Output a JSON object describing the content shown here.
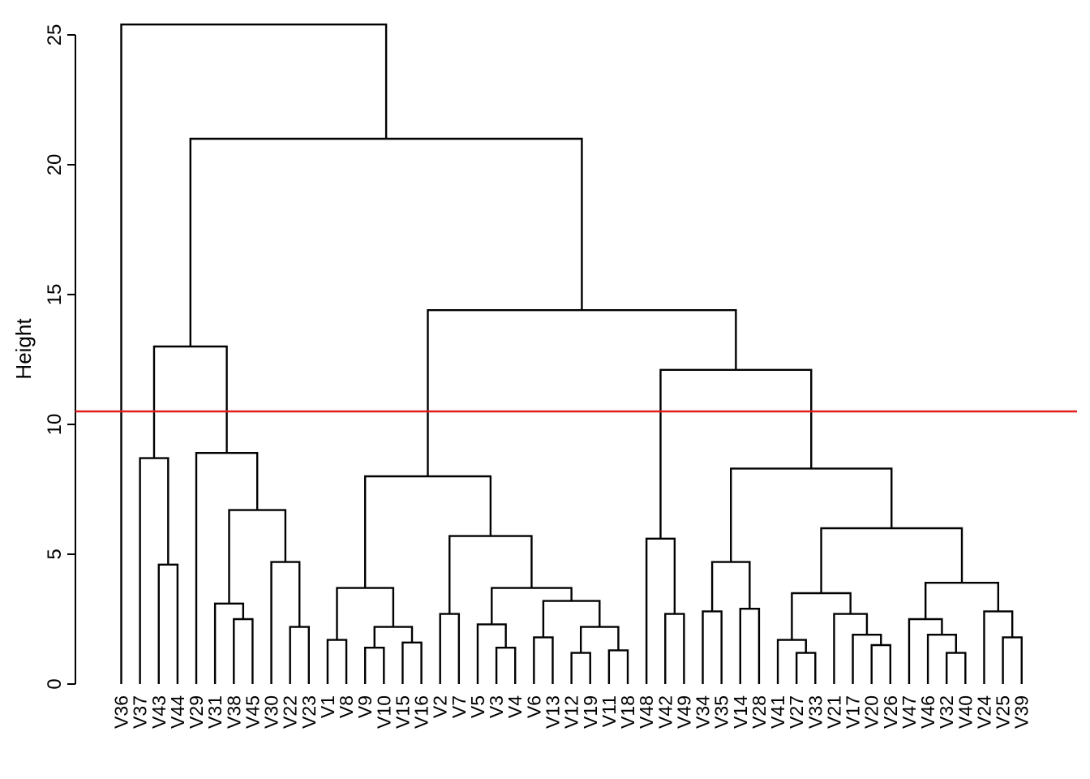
{
  "chart_data": {
    "type": "dendrogram",
    "title": "",
    "xlabel": "",
    "ylabel": "Height",
    "ylim": [
      0,
      25.5
    ],
    "yticks": [
      0,
      5,
      10,
      15,
      20,
      25
    ],
    "leaves": [
      "V36",
      "V37",
      "V43",
      "V44",
      "V29",
      "V31",
      "V38",
      "V45",
      "V30",
      "V22",
      "V23",
      "V1",
      "V8",
      "V9",
      "V10",
      "V15",
      "V16",
      "V2",
      "V7",
      "V5",
      "V3",
      "V4",
      "V6",
      "V13",
      "V12",
      "V19",
      "V11",
      "V18",
      "V48",
      "V42",
      "V49",
      "V34",
      "V35",
      "V14",
      "V28",
      "V41",
      "V27",
      "V33",
      "V21",
      "V17",
      "V20",
      "V26",
      "V47",
      "V46",
      "V32",
      "V40",
      "V24",
      "V25",
      "V39"
    ],
    "merges": [
      [
        "V43",
        "V44",
        4.6,
        "A1"
      ],
      [
        "V37",
        "A1",
        8.7,
        "A2"
      ],
      [
        "V38",
        "V45",
        2.5,
        "B1"
      ],
      [
        "V31",
        "B1",
        3.1,
        "B2"
      ],
      [
        "V22",
        "V23",
        2.2,
        "B3"
      ],
      [
        "V30",
        "B3",
        4.7,
        "B4"
      ],
      [
        "B2",
        "B4",
        6.7,
        "B5"
      ],
      [
        "V29",
        "B5",
        8.9,
        "B6"
      ],
      [
        "A2",
        "B6",
        13.0,
        "AB"
      ],
      [
        "V1",
        "V8",
        1.7,
        "C1"
      ],
      [
        "V9",
        "V10",
        1.4,
        "C2"
      ],
      [
        "V15",
        "V16",
        1.6,
        "C3"
      ],
      [
        "C2",
        "C3",
        2.2,
        "C4"
      ],
      [
        "C1",
        "C4",
        3.7,
        "C5"
      ],
      [
        "V2",
        "V7",
        2.7,
        "C6"
      ],
      [
        "V3",
        "V4",
        1.4,
        "C7"
      ],
      [
        "V5",
        "C7",
        2.3,
        "C8"
      ],
      [
        "V6",
        "V13",
        1.8,
        "C9"
      ],
      [
        "V12",
        "V19",
        1.2,
        "C10"
      ],
      [
        "V11",
        "V18",
        1.3,
        "C11"
      ],
      [
        "C10",
        "C11",
        2.2,
        "C12"
      ],
      [
        "C9",
        "C12",
        3.2,
        "C13"
      ],
      [
        "C8",
        "C13",
        3.7,
        "C14"
      ],
      [
        "C6",
        "C14",
        5.7,
        "C15"
      ],
      [
        "C5",
        "C15",
        8.0,
        "C16"
      ],
      [
        "V42",
        "V49",
        2.7,
        "D1"
      ],
      [
        "V48",
        "D1",
        5.6,
        "D2"
      ],
      [
        "V34",
        "V35",
        2.8,
        "D3"
      ],
      [
        "V14",
        "V28",
        2.9,
        "D4"
      ],
      [
        "D3",
        "D4",
        4.7,
        "D5"
      ],
      [
        "V27",
        "V33",
        1.2,
        "D6"
      ],
      [
        "V41",
        "D6",
        1.7,
        "D7"
      ],
      [
        "V20",
        "V26",
        1.5,
        "D8"
      ],
      [
        "V17",
        "D8",
        1.9,
        "D9"
      ],
      [
        "V21",
        "D9",
        2.7,
        "D10"
      ],
      [
        "D7",
        "D10",
        3.5,
        "D11"
      ],
      [
        "V32",
        "V40",
        1.2,
        "D12"
      ],
      [
        "V46",
        "D12",
        1.9,
        "D13"
      ],
      [
        "V47",
        "D13",
        2.5,
        "D14"
      ],
      [
        "V25",
        "V39",
        1.8,
        "D15"
      ],
      [
        "V24",
        "D15",
        2.8,
        "D16"
      ],
      [
        "D14",
        "D16",
        3.9,
        "D17"
      ],
      [
        "D11",
        "D17",
        6.0,
        "D18"
      ],
      [
        "D5",
        "D18",
        8.3,
        "D19"
      ],
      [
        "D2",
        "D19",
        12.1,
        "D20"
      ],
      [
        "C16",
        "D20",
        14.4,
        "CD"
      ],
      [
        "AB",
        "CD",
        21.0,
        "ABCD"
      ],
      [
        "V36",
        "ABCD",
        25.4,
        "ROOT"
      ]
    ],
    "cut_height": 10.5,
    "colors": {
      "tree": "#000000",
      "cut_line": "#e41a1c"
    }
  }
}
